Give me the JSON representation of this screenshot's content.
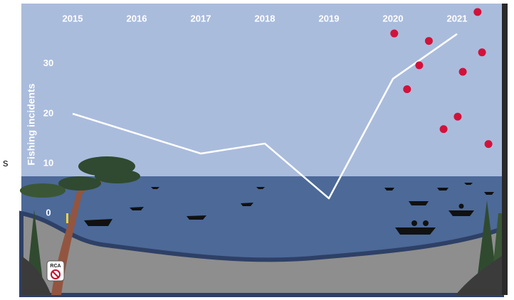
{
  "chart_data": [
    {
      "type": "line",
      "y_label": "Fishing incidents",
      "x": [
        2015,
        2016,
        2017,
        2018,
        2019,
        2020,
        2021
      ],
      "values": [
        20,
        16,
        12,
        14,
        3,
        27,
        36
      ],
      "color": "#ffffff",
      "xlim": [
        2014.2,
        2021.7
      ],
      "xticks": [
        2015,
        2016,
        2017,
        2018,
        2019,
        2020,
        2021
      ],
      "ylim": [
        -16.4,
        42.1
      ],
      "yticks": [
        0,
        10,
        20,
        30
      ]
    },
    {
      "type": "scatter",
      "x": [
        2020.02,
        2020.56,
        2020.41,
        2020.22,
        2021.09,
        2021.39,
        2021.32,
        2021.01,
        2020.79,
        2021.49
      ],
      "values": [
        36.1,
        34.6,
        29.7,
        24.9,
        28.4,
        32.3,
        40.4,
        19.4,
        16.9,
        13.9
      ],
      "color": "#d2123a"
    }
  ],
  "edge_text": "s",
  "badge": "RCA"
}
